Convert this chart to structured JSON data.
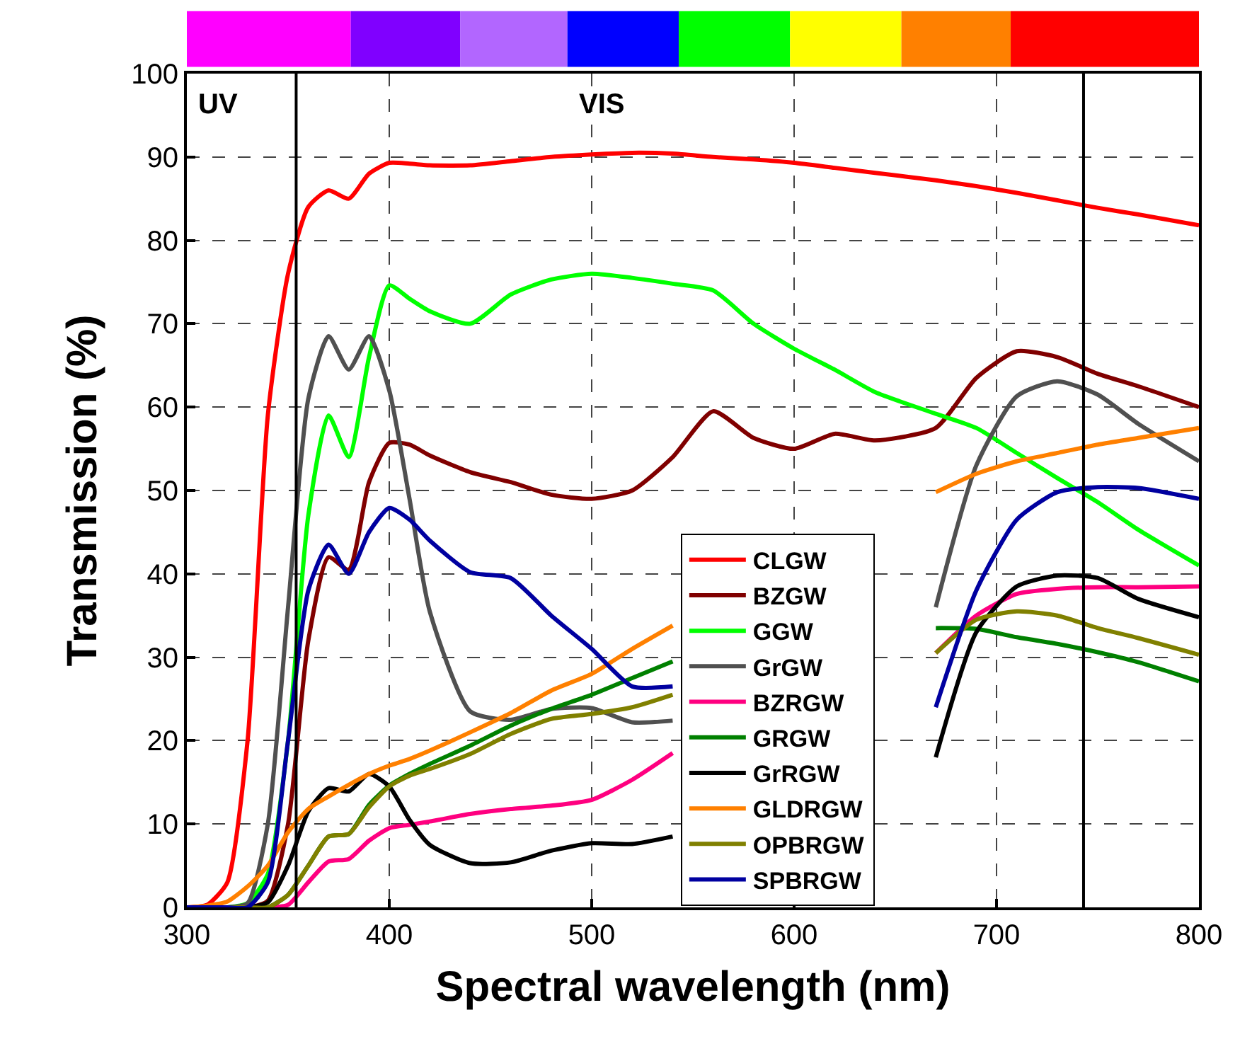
{
  "chart_data": {
    "type": "line",
    "xlabel": "Spectral wavelength (nm)",
    "ylabel": "Transmission (%)",
    "x": [
      300,
      310,
      320,
      330,
      340,
      350,
      360,
      370,
      380,
      390,
      400,
      410,
      420,
      440,
      460,
      480,
      500,
      520,
      540,
      560,
      580,
      600,
      620,
      640,
      670,
      690,
      710,
      730,
      750,
      770,
      800
    ],
    "series": [
      {
        "name": "CLGW",
        "color": "#ff0000",
        "values": [
          0,
          0.3,
          3,
          20,
          59,
          76,
          84,
          86,
          85,
          88,
          89.3,
          89.2,
          89,
          89,
          89.5,
          90,
          90.3,
          90.5,
          90.4,
          90,
          89.7,
          89.3,
          88.7,
          88.1,
          87.2,
          86.5,
          85.7,
          84.8,
          83.9,
          83.1,
          81.8
        ]
      },
      {
        "name": "BZGW",
        "color": "#800000",
        "values": [
          null,
          null,
          0,
          0,
          0.8,
          10,
          32,
          42,
          40.5,
          51,
          55.7,
          55.5,
          54.2,
          52.2,
          51,
          49.5,
          49,
          50,
          54,
          59.5,
          56.3,
          55,
          56.8,
          56,
          57.5,
          63.5,
          66.7,
          66,
          64,
          62.5,
          60
        ]
      },
      {
        "name": "GGW",
        "color": "#00ff00",
        "values": [
          0,
          0,
          0,
          0.5,
          4,
          20,
          47,
          59,
          54,
          66,
          74.6,
          73,
          71.5,
          70,
          73.5,
          75.3,
          76,
          75.5,
          74.8,
          74,
          70,
          67,
          64.5,
          61.8,
          59.2,
          57.5,
          54.5,
          51.5,
          48.6,
          45.3,
          41
        ]
      },
      {
        "name": "GrGW",
        "color": "#505050",
        "values": [
          0,
          0,
          0,
          0.5,
          10,
          36,
          61,
          68.5,
          64.5,
          68.5,
          62,
          49,
          35.5,
          23.5,
          22.5,
          23.8,
          23.9,
          22.2,
          22.4,
          null,
          null,
          null,
          null,
          null,
          36,
          53,
          61.3,
          63.1,
          61.5,
          58,
          53.5
        ]
      },
      {
        "name": "BZRGW",
        "color": "#ff0080",
        "values": [
          null,
          null,
          null,
          0,
          0,
          0.3,
          3,
          5.5,
          5.8,
          8,
          9.5,
          9.9,
          10.3,
          11.2,
          11.8,
          12.2,
          12.9,
          15.3,
          18.5,
          null,
          null,
          null,
          null,
          null,
          30.5,
          35,
          37.6,
          38.2,
          38.4,
          38.4,
          38.5
        ]
      },
      {
        "name": "GRGW",
        "color": "#008000",
        "values": [
          0,
          0,
          0,
          0,
          0,
          1.5,
          5,
          8.5,
          8.8,
          12.3,
          14.6,
          16,
          17.2,
          19.4,
          21.8,
          23.8,
          25.5,
          27.5,
          29.5,
          null,
          null,
          null,
          null,
          null,
          33.5,
          33.4,
          32.4,
          31.6,
          30.6,
          29.4,
          27.1
        ]
      },
      {
        "name": "GrRGW",
        "color": "#000000",
        "values": [
          0,
          0,
          0,
          0,
          0.6,
          5,
          11.5,
          14.3,
          13.9,
          16,
          14.5,
          10.5,
          7.5,
          5.3,
          5.4,
          6.8,
          7.7,
          7.6,
          8.5,
          null,
          null,
          null,
          null,
          null,
          18,
          33,
          38.5,
          39.8,
          39.5,
          37,
          34.8
        ]
      },
      {
        "name": "GLDRGW",
        "color": "#ff8000",
        "values": [
          0,
          0.2,
          0.7,
          2.5,
          5,
          9,
          11.8,
          13.3,
          14.7,
          16,
          17,
          17.8,
          18.8,
          21,
          23.3,
          26,
          28,
          31,
          33.8,
          null,
          null,
          null,
          null,
          null,
          49.8,
          52,
          53.5,
          54.5,
          55.5,
          56.3,
          57.5
        ]
      },
      {
        "name": "OPBRGW",
        "color": "#808000",
        "values": [
          0,
          0,
          0,
          0,
          0,
          1.5,
          5,
          8.5,
          8.8,
          12,
          14.5,
          15.8,
          16.6,
          18.4,
          20.8,
          22.6,
          23.2,
          24,
          25.5,
          null,
          null,
          null,
          null,
          null,
          30.5,
          34.5,
          35.5,
          35,
          33.5,
          32.3,
          30.3
        ]
      },
      {
        "name": "SPBRGW",
        "color": "#0000a0",
        "values": [
          0,
          0,
          0,
          0,
          3,
          20,
          38,
          43.5,
          40,
          45,
          47.9,
          46.5,
          44,
          40.2,
          39.5,
          35,
          31,
          26.5,
          26.5,
          null,
          null,
          null,
          null,
          null,
          24,
          38,
          46.5,
          49.8,
          50.4,
          50.3,
          49
        ]
      }
    ],
    "xlim": [
      300,
      800
    ],
    "xticks": [
      300,
      400,
      500,
      600,
      700,
      800
    ],
    "ylim": [
      0,
      100
    ],
    "yticks": [
      0,
      10,
      20,
      30,
      40,
      50,
      60,
      70,
      80,
      90,
      100
    ],
    "ref_lines": [
      {
        "axis": "x",
        "value": 354,
        "color": "#000000"
      },
      {
        "axis": "x",
        "value": 743,
        "color": "#000000"
      }
    ],
    "annotations": [
      "UV",
      "VIS"
    ],
    "grid": true,
    "legend": "bottom",
    "line_style": "solid",
    "marker": "none"
  }
}
